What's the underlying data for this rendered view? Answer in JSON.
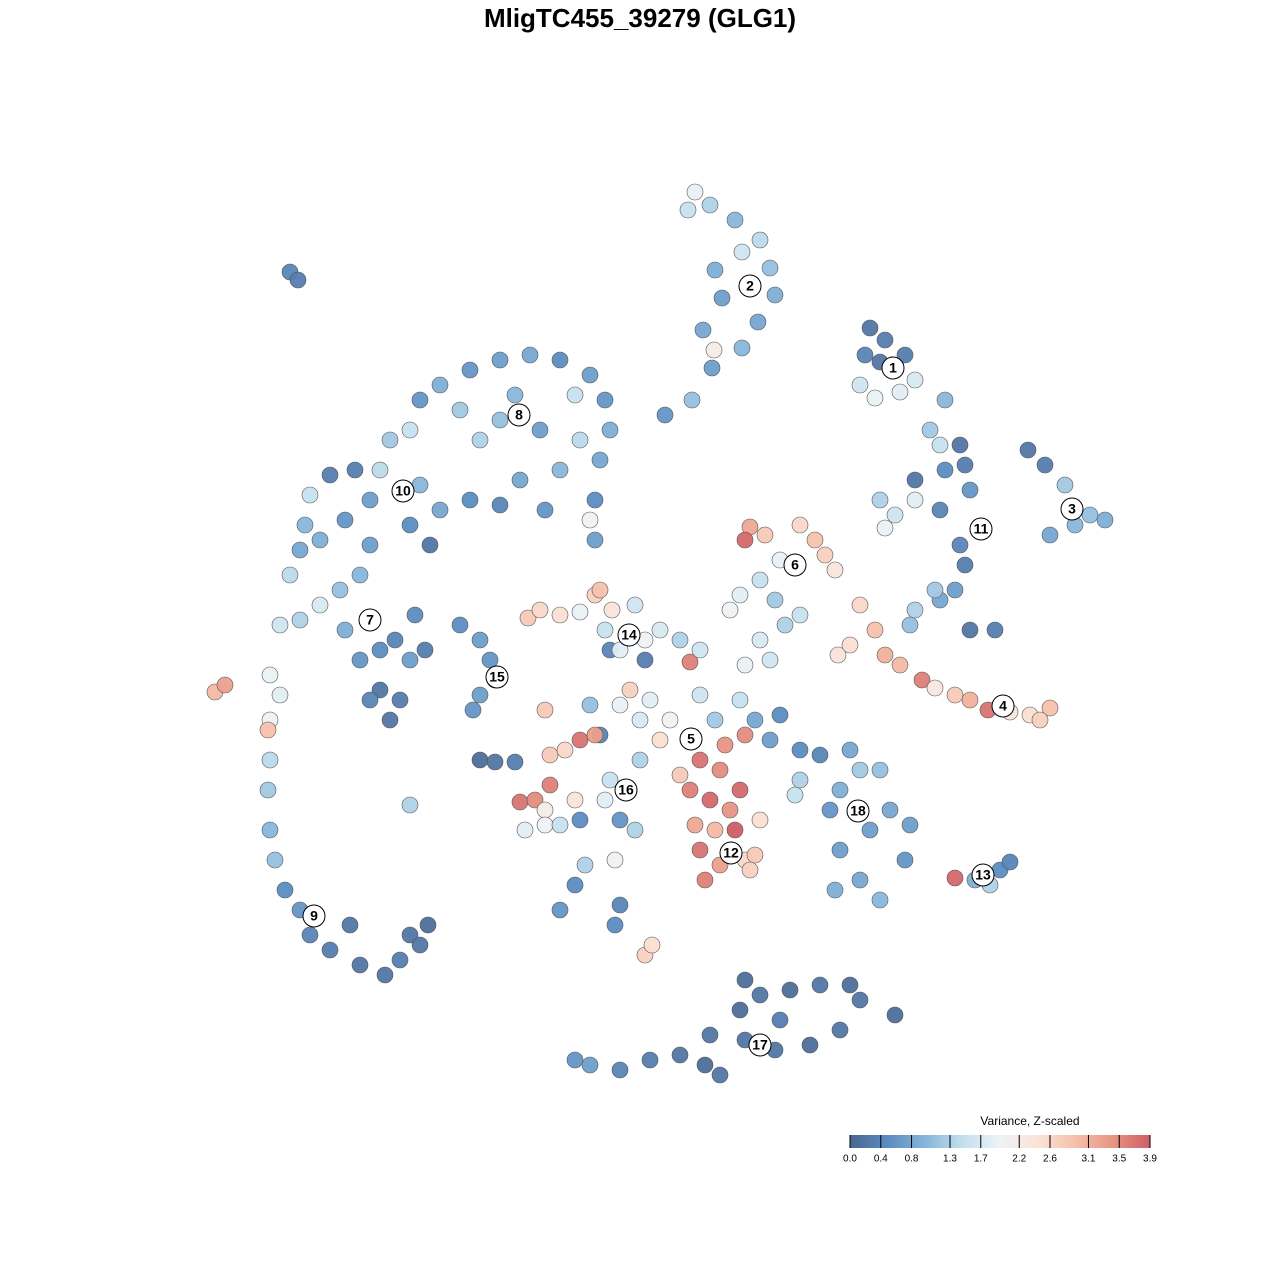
{
  "chart_data": {
    "type": "scatter",
    "title": "MligTC455_39279 (GLG1)",
    "colorbar": {
      "title": "Variance, Z-scaled",
      "clim": [
        0,
        3.9
      ],
      "colors": [
        "#4a6690",
        "#5a8cc0",
        "#85b5da",
        "#c3dfee",
        "#eef3f6",
        "#fbe3d8",
        "#f5c0aa",
        "#e89584",
        "#cf5d66"
      ],
      "ticks": [
        {
          "value": 0,
          "label": "0.0"
        },
        0.4,
        0.8,
        1.3,
        1.7,
        2.2,
        2.6,
        3.1,
        3.5,
        3.9
      ]
    },
    "series": [
      {
        "name": "1",
        "center": [
          25.3,
          27.2
        ],
        "x": [
          23,
          24.5,
          22.5,
          24,
          26.5,
          22,
          23.5,
          26,
          27.5,
          30.5
        ],
        "y": [
          31.2,
          30,
          28.5,
          27.8,
          28.5,
          25.5,
          24.2,
          24.8,
          26,
          24
        ],
        "values": [
          0.2,
          0.3,
          0.4,
          0.2,
          0.3,
          1.6,
          1.9,
          1.8,
          1.7,
          1.0
        ]
      },
      {
        "name": "2",
        "center": [
          11,
          35.4
        ],
        "x": [
          5.5,
          7,
          9.5,
          12,
          13,
          13.5,
          11.8,
          10.2,
          8.2,
          7.5,
          6.3,
          7.2,
          5.2,
          2.5,
          10.2,
          4.8,
          7.4
        ],
        "y": [
          44.8,
          43.5,
          42,
          40,
          37.2,
          34.5,
          31.8,
          29.2,
          34.2,
          37,
          31,
          27.2,
          24,
          22.5,
          38.8,
          43,
          29
        ],
        "values": [
          1.9,
          1.3,
          1.0,
          1.4,
          1.1,
          0.9,
          0.8,
          1.0,
          0.7,
          0.9,
          0.8,
          0.7,
          1.1,
          0.6,
          1.6,
          1.5,
          2.2
        ]
      },
      {
        "name": "3",
        "center": [
          43.2,
          13.1
        ],
        "x": [
          38.8,
          40.5,
          42.5,
          45,
          46.5,
          41,
          43.5
        ],
        "y": [
          19,
          17.5,
          15.5,
          12.5,
          12,
          10.5,
          11.5
        ],
        "values": [
          0.2,
          0.3,
          1.2,
          1.1,
          0.9,
          0.8,
          1.0
        ]
      },
      {
        "name": "4",
        "center": [
          36.3,
          -6.6
        ],
        "x": [
          22,
          23.5,
          24.5,
          26,
          28.2,
          29.5,
          31.5,
          33,
          34.8,
          37,
          39,
          41,
          40,
          19.8,
          21
        ],
        "y": [
          3.5,
          1,
          -1.5,
          -2.5,
          -4,
          -4.8,
          -5.5,
          -6,
          -7,
          -7.2,
          -7.5,
          -6.8,
          -8,
          -1.5,
          -0.5
        ],
        "values": [
          2.6,
          2.9,
          3.1,
          3.0,
          3.6,
          2.3,
          2.8,
          3.1,
          3.7,
          2.4,
          2.5,
          2.9,
          2.7,
          2.4,
          2.5
        ]
      },
      {
        "name": "5",
        "center": [
          5.1,
          -9.9
        ],
        "x": [
          5,
          1,
          3,
          6,
          7.5,
          2,
          0,
          -2,
          10,
          11.5,
          14,
          13,
          4,
          8.5,
          -1,
          0,
          -4,
          0.5
        ],
        "y": [
          -2.2,
          -6,
          -8,
          -5.5,
          -8,
          -10,
          -8,
          -6.5,
          -6,
          -8,
          -7.5,
          -10,
          -13.5,
          -10.5,
          -5,
          -12,
          -9.5,
          -2
        ],
        "values": [
          3.6,
          1.8,
          2.0,
          1.6,
          1.2,
          2.5,
          1.7,
          1.9,
          1.5,
          0.8,
          0.5,
          0.7,
          2.8,
          3.4,
          2.7,
          1.3,
          0.4,
          0.3
        ]
      },
      {
        "name": "6",
        "center": [
          15.5,
          7.5
        ],
        "x": [
          11,
          12.5,
          10.5,
          16,
          17.5,
          18.5,
          19.5,
          14,
          12,
          10,
          9,
          13.5,
          16,
          14.5,
          12,
          13,
          10.5
        ],
        "y": [
          11.3,
          10.5,
          10,
          11.5,
          10,
          8.5,
          7,
          8,
          6,
          4.5,
          3,
          4,
          2.5,
          1.5,
          0,
          -2,
          -2.5
        ],
        "values": [
          3.2,
          2.8,
          3.8,
          2.6,
          2.9,
          2.7,
          2.4,
          1.9,
          1.5,
          1.8,
          2.0,
          1.2,
          1.5,
          1.3,
          1.7,
          1.6,
          1.9
        ]
      },
      {
        "name": "7",
        "center": [
          -27,
          2
        ],
        "x": [
          -35,
          -36,
          -34,
          -32,
          -30,
          -29.5,
          -28,
          -26,
          -24.5,
          -23,
          -21.5,
          -26,
          -24,
          -25,
          -27,
          -22.5,
          -28
        ],
        "y": [
          6.5,
          1.5,
          2,
          3.5,
          5,
          1,
          -2,
          -1,
          0,
          -2,
          -1,
          -5,
          -6,
          -8,
          -6,
          2.5,
          6.5
        ],
        "values": [
          1.4,
          1.6,
          1.3,
          1.7,
          1.1,
          0.9,
          0.6,
          0.5,
          0.4,
          0.7,
          0.3,
          0.2,
          0.3,
          0.2,
          0.4,
          0.5,
          1.0
        ]
      },
      {
        "name": "8",
        "center": [
          -12.1,
          22.5
        ],
        "x": [
          -20,
          -17,
          -14,
          -11,
          -8,
          -5,
          -3.5,
          -3,
          -4,
          -4.5,
          -4.5,
          -5,
          -8,
          -10,
          -14,
          -16,
          -18,
          -22,
          -25,
          -23,
          -12,
          -9.5,
          -14,
          -17,
          -6,
          -6.5,
          -12.5,
          -35,
          -34.2
        ],
        "y": [
          25.5,
          27,
          28,
          28.5,
          28,
          26.5,
          24,
          21,
          18,
          14,
          10,
          12,
          17,
          21,
          22,
          20,
          23,
          24,
          20,
          21,
          16,
          13,
          13.5,
          14,
          20,
          24.5,
          24.5,
          36.8,
          36
        ],
        "values": [
          0.9,
          0.6,
          0.7,
          0.8,
          0.5,
          0.7,
          0.6,
          0.9,
          0.8,
          0.5,
          0.7,
          2.0,
          1.0,
          0.7,
          1.1,
          1.3,
          1.2,
          0.6,
          1.2,
          1.5,
          0.8,
          0.6,
          0.4,
          0.5,
          1.4,
          1.5,
          1.0,
          0.4,
          0.3
        ]
      },
      {
        "name": "9",
        "center": [
          -32.6,
          -27.6
        ],
        "x": [
          -37,
          -36,
          -37,
          -37.2,
          -37,
          -37.2,
          -37,
          -36.5,
          -35.5,
          -34,
          -33,
          -31,
          -29,
          -28,
          -25.5,
          -24,
          -23,
          -21.2,
          -22,
          -42.5,
          -41.5,
          -23
        ],
        "y": [
          -3.5,
          -5.5,
          -8,
          -9,
          -12,
          -15,
          -19,
          -22,
          -25,
          -27,
          -29.5,
          -31,
          -28.5,
          -32.5,
          -33.5,
          -32,
          -29.5,
          -28.5,
          -30.5,
          -5.2,
          -4.5,
          -16.5
        ],
        "values": [
          1.9,
          1.8,
          2.0,
          2.9,
          1.4,
          1.2,
          1.0,
          1.1,
          0.5,
          0.6,
          0.4,
          0.3,
          0.2,
          0.2,
          0.2,
          0.3,
          0.2,
          0.1,
          0.2,
          3.0,
          3.3,
          1.3
        ]
      },
      {
        "name": "10",
        "center": [
          -23.7,
          14.9
        ],
        "x": [
          -31,
          -33,
          -33.5,
          -34,
          -32,
          -29.5,
          -27,
          -26,
          -28.5,
          -22,
          -20,
          -23,
          -21,
          -27
        ],
        "y": [
          16.5,
          14.5,
          11.5,
          9,
          10,
          12,
          14,
          17,
          17,
          15.5,
          13,
          11.5,
          9.5,
          9.5
        ],
        "values": [
          0.3,
          1.5,
          1.0,
          0.8,
          0.9,
          0.6,
          0.7,
          1.4,
          0.3,
          1.0,
          0.8,
          0.5,
          0.2,
          0.7
        ]
      },
      {
        "name": "11",
        "center": [
          34.1,
          11.1
        ],
        "x": [
          29,
          30,
          32,
          32.5,
          30.5,
          27.5,
          33,
          30,
          27.5,
          25.5,
          24,
          24.5,
          32,
          32.5,
          31.5,
          30,
          27.5,
          27,
          33,
          35.5,
          29.5
        ],
        "y": [
          21,
          19.5,
          19.5,
          17.5,
          17,
          16,
          15,
          13,
          14,
          12.5,
          14,
          11.2,
          9.5,
          7.5,
          5,
          4,
          3,
          1.5,
          1,
          1,
          5
        ],
        "values": [
          1.2,
          1.5,
          0.2,
          0.3,
          0.5,
          0.2,
          0.6,
          0.4,
          1.8,
          1.6,
          1.3,
          1.9,
          0.4,
          0.3,
          0.7,
          0.8,
          1.3,
          1.1,
          0.2,
          0.3,
          1.2
        ]
      },
      {
        "name": "12",
        "center": [
          9.1,
          -21.3
        ],
        "x": [
          6,
          8,
          5,
          7,
          9,
          5.5,
          7.5,
          9.5,
          6,
          8,
          6.5,
          10.5,
          11.5,
          11,
          10,
          12,
          10.5
        ],
        "y": [
          -12,
          -13,
          -15,
          -16,
          -17,
          -18.5,
          -19,
          -19,
          -21,
          -22.5,
          -24,
          -22,
          -21.5,
          -23,
          -15,
          -18,
          -9.5
        ],
        "values": [
          3.7,
          3.5,
          3.6,
          3.8,
          3.4,
          3.2,
          3.0,
          3.9,
          3.7,
          3.3,
          3.6,
          2.6,
          2.8,
          2.7,
          3.8,
          2.5,
          3.5
        ]
      },
      {
        "name": "13",
        "center": [
          34.3,
          -23.5
        ],
        "x": [
          31.5,
          33.5,
          35,
          36,
          37
        ],
        "y": [
          -23.8,
          -24,
          -24.5,
          -23,
          -22.2
        ],
        "values": [
          3.8,
          0.9,
          1.3,
          0.5,
          0.4
        ]
      },
      {
        "name": "14",
        "center": [
          -1.1,
          0.5
        ],
        "x": [
          -11.2,
          -10,
          -8,
          -6,
          -4.5,
          -4,
          -2.8,
          -3.5,
          -3,
          -0.5,
          2,
          4,
          6,
          -2,
          0.5
        ],
        "y": [
          2.2,
          3,
          2.5,
          2.8,
          4.5,
          5,
          3,
          1,
          -1,
          3.5,
          1,
          0,
          -1,
          -1,
          0
        ],
        "values": [
          2.8,
          2.6,
          2.5,
          1.9,
          2.7,
          2.9,
          2.4,
          1.5,
          0.4,
          1.6,
          1.7,
          1.3,
          1.6,
          1.8,
          2.0
        ]
      },
      {
        "name": "15",
        "center": [
          -14.3,
          -3.7
        ],
        "x": [
          -18,
          -16,
          -15,
          -14.5,
          -16,
          -16.7
        ],
        "y": [
          1.5,
          0,
          -2,
          -4,
          -5.5,
          -7
        ],
        "values": [
          0.5,
          0.7,
          0.6,
          0.8,
          0.7,
          0.6
        ]
      },
      {
        "name": "16",
        "center": [
          -1.4,
          -15
        ],
        "x": [
          -12,
          -10.5,
          -9,
          -9.5,
          -11.5,
          -9.5,
          -8,
          -6.5,
          -6,
          -9,
          -7.5,
          -6,
          -4.5,
          -3,
          -3.5,
          -2,
          -0.5,
          -2.5,
          -5.5,
          -6.5,
          -8,
          -2,
          -2.5,
          -9.5,
          -5,
          0.5,
          1.2,
          -16,
          -14.5,
          -12.5
        ],
        "y": [
          -16.2,
          -16,
          -14.5,
          -17,
          -19,
          -18.5,
          -18.5,
          -16,
          -18,
          -11.5,
          -11,
          -10,
          -9.5,
          -14,
          -16,
          -18,
          -19,
          -22,
          -22.5,
          -24.5,
          -27,
          -26.5,
          -28.5,
          -7,
          -6.5,
          -31.5,
          -30.5,
          -12,
          -12.2,
          -12.2
        ],
        "values": [
          3.7,
          3.5,
          3.6,
          2.2,
          1.8,
          2.0,
          1.5,
          2.4,
          0.5,
          2.8,
          2.6,
          3.7,
          3.3,
          1.5,
          1.8,
          0.6,
          1.3,
          2.0,
          1.3,
          0.5,
          0.6,
          0.4,
          0.5,
          2.8,
          1.1,
          2.7,
          2.5,
          0.1,
          0.2,
          0.3
        ]
      },
      {
        "name": "17",
        "center": [
          12,
          -40.5
        ],
        "x": [
          -6.5,
          -5,
          -2,
          1,
          4,
          6.5,
          8,
          7,
          10,
          12,
          15,
          18,
          21,
          22,
          25.5,
          20,
          17,
          13.5,
          14,
          10.5,
          10.5
        ],
        "y": [
          -42,
          -42.5,
          -43,
          -42,
          -41.5,
          -42.5,
          -43.5,
          -39.5,
          -37,
          -35.5,
          -35,
          -34.5,
          -34.5,
          -36,
          -37.5,
          -39,
          -40.5,
          -41,
          -38,
          -40,
          -34
        ],
        "values": [
          0.6,
          0.7,
          0.4,
          0.3,
          0.2,
          0.1,
          0.2,
          0.2,
          0.1,
          0.2,
          0.1,
          0.2,
          0.1,
          0.2,
          0.1,
          0.2,
          0.1,
          0.2,
          0.3,
          0.2,
          0.1
        ]
      },
      {
        "name": "18",
        "center": [
          21.8,
          -17.1
        ],
        "x": [
          16,
          18,
          21,
          22,
          24,
          20,
          19,
          23,
          25,
          27,
          26.5,
          24,
          22,
          19.5,
          20,
          15.5,
          16
        ],
        "y": [
          -11,
          -11.5,
          -11,
          -13,
          -13,
          -15,
          -17,
          -19,
          -17,
          -18.5,
          -22,
          -26,
          -24,
          -25,
          -21,
          -15.5,
          -14
        ],
        "values": [
          0.5,
          0.4,
          0.8,
          1.2,
          1.1,
          0.9,
          0.6,
          0.7,
          0.8,
          0.7,
          0.6,
          1.0,
          0.8,
          0.9,
          0.7,
          1.5,
          1.3
        ]
      }
    ]
  }
}
